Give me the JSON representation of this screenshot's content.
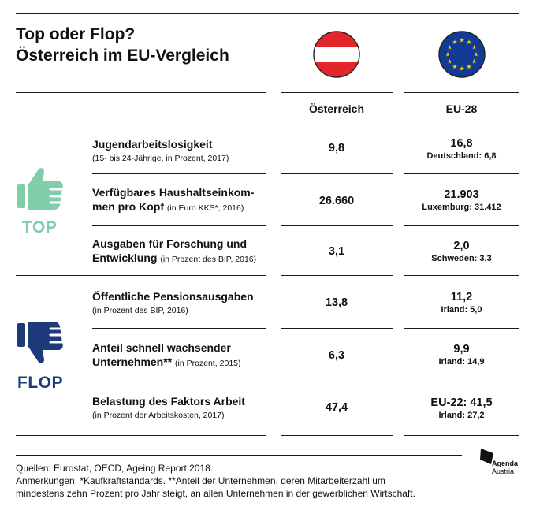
{
  "title": {
    "line1": "Top oder Flop?",
    "line2": "Österreich im EU-Vergleich"
  },
  "columns": {
    "austria": "Österreich",
    "eu": "EU-28"
  },
  "colors": {
    "top_green": "#7fcda9",
    "flop_blue": "#1f3a7a",
    "austria_red": "#e3262b",
    "eu_blue": "#123b95",
    "eu_star": "#ffcc00"
  },
  "icons": {
    "top": "thumbs-up-icon",
    "flop": "thumbs-down-icon",
    "austria": "austria-flag-icon",
    "eu": "eu-flag-icon"
  },
  "groups": {
    "top": "TOP",
    "flop": "FLOP"
  },
  "rows": [
    {
      "label_a": "Jugendarbeitslosigkeit",
      "note": "(15- bis 24-Jährige, in Prozent, 2017)",
      "austria": "9,8",
      "eu": "16,8",
      "eu_ref": "Deutschland: 6,8"
    },
    {
      "label_a": "Verfügbares Haushaltseinkom-",
      "label_b": "men pro Kopf",
      "note": "(in Euro KKS*, 2016)",
      "austria": "26.660",
      "eu": "21.903",
      "eu_ref": "Luxemburg: 31.412"
    },
    {
      "label_a": "Ausgaben für Forschung und",
      "label_b": "Entwicklung",
      "note": "(in Prozent des BIP, 2016)",
      "austria": "3,1",
      "eu": "2,0",
      "eu_ref": "Schweden: 3,3"
    },
    {
      "label_a": "Öffentliche Pensionsausgaben",
      "note": "(in Prozent des BIP, 2016)",
      "austria": "13,8",
      "eu": "11,2",
      "eu_ref": "Irland: 5,0"
    },
    {
      "label_a": "Anteil schnell wachsender",
      "label_b": "Unternehmen**",
      "note": "(in Prozent, 2015)",
      "austria": "6,3",
      "eu": "9,9",
      "eu_ref": "Irland: 14,9"
    },
    {
      "label_a": "Belastung des Faktors Arbeit",
      "note": "(in Prozent der Arbeitskosten, 2017)",
      "austria": "47,4",
      "eu": "EU-22: 41,5",
      "eu_ref": "Irland: 27,2"
    }
  ],
  "footer": {
    "sources": "Quellen: Eurostat, OECD, Ageing Report 2018.",
    "notes_a": "Anmerkungen:  *Kaufkraftstandards. **Anteil der Unternehmen, deren Mitarbeiterzahl um",
    "notes_b": "mindestens zehn Prozent pro Jahr steigt, an allen Unternehmen in der gewerblichen Wirtschaft."
  },
  "logo": {
    "line1": "Agenda",
    "line2": "Austria"
  },
  "chart_data": {
    "type": "table",
    "title": "Top oder Flop? Österreich im EU-Vergleich",
    "columns": [
      "Österreich",
      "EU-28"
    ],
    "groups": [
      {
        "name": "TOP",
        "rows": [
          0,
          1,
          2
        ]
      },
      {
        "name": "FLOP",
        "rows": [
          3,
          4,
          5
        ]
      }
    ],
    "series": [
      {
        "name": "Österreich",
        "values": [
          9.8,
          26660,
          3.1,
          13.8,
          6.3,
          47.4
        ]
      },
      {
        "name": "EU-28",
        "values": [
          16.8,
          21903,
          2.0,
          11.2,
          9.9,
          41.5
        ]
      }
    ]
  }
}
